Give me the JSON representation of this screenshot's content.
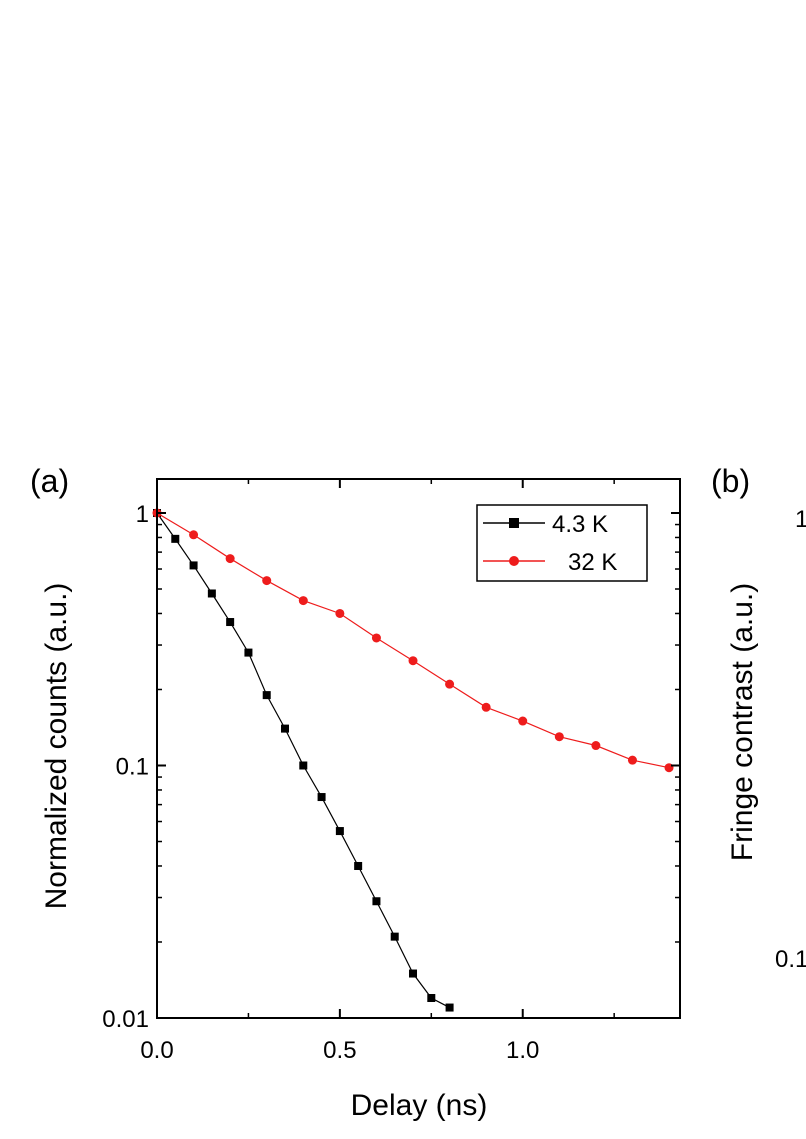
{
  "chart_data": [
    {
      "panel": "(a)",
      "type": "scatter",
      "x_scale": "linear",
      "y_scale": "log",
      "xlabel": "Delay (ns)",
      "ylabel": "Normalized counts (a.u.)",
      "xlim": [
        0.0,
        1.43
      ],
      "ylim": [
        0.01,
        1.15
      ],
      "xticks": [
        {
          "value": 0.0,
          "label": "0.0"
        },
        {
          "value": 0.5,
          "label": "0.5"
        },
        {
          "value": 1.0,
          "label": "1.0"
        }
      ],
      "yticks": [
        {
          "value": 0.01,
          "label": "0.01"
        },
        {
          "value": 0.1,
          "label": "0.1"
        },
        {
          "value": 1,
          "label": "1"
        }
      ],
      "legend_position": "top-right",
      "series": [
        {
          "name": "4.3 K",
          "color": "#000000",
          "marker": "square",
          "connected": true,
          "points": [
            [
              0.0,
              1.0
            ],
            [
              0.05,
              0.79
            ],
            [
              0.1,
              0.62
            ],
            [
              0.15,
              0.48
            ],
            [
              0.2,
              0.37
            ],
            [
              0.25,
              0.28
            ],
            [
              0.3,
              0.19
            ],
            [
              0.35,
              0.14
            ],
            [
              0.4,
              0.1
            ],
            [
              0.45,
              0.075
            ],
            [
              0.5,
              0.055
            ],
            [
              0.55,
              0.04
            ],
            [
              0.6,
              0.029
            ],
            [
              0.65,
              0.021
            ],
            [
              0.7,
              0.015
            ],
            [
              0.75,
              0.012
            ],
            [
              0.8,
              0.011
            ]
          ]
        },
        {
          "name": "32 K",
          "color": "#ee1c1c",
          "marker": "circle",
          "connected": true,
          "points": [
            [
              0.0,
              1.0
            ],
            [
              0.1,
              0.82
            ],
            [
              0.2,
              0.66
            ],
            [
              0.3,
              0.54
            ],
            [
              0.4,
              0.45
            ],
            [
              0.5,
              0.4
            ],
            [
              0.6,
              0.32
            ],
            [
              0.7,
              0.26
            ],
            [
              0.8,
              0.21
            ],
            [
              0.9,
              0.17
            ],
            [
              1.0,
              0.15
            ],
            [
              1.1,
              0.13
            ],
            [
              1.2,
              0.12
            ],
            [
              1.3,
              0.105
            ],
            [
              1.4,
              0.098
            ]
          ]
        }
      ]
    },
    {
      "panel": "(b)",
      "type": "scatter",
      "partial": true,
      "y_scale": "log",
      "ylabel": "Fringe contrast (a.u.)",
      "yticks_visible": [
        {
          "value": 1,
          "label": "1"
        },
        {
          "value": 0.1,
          "label": "0.1"
        }
      ]
    }
  ]
}
